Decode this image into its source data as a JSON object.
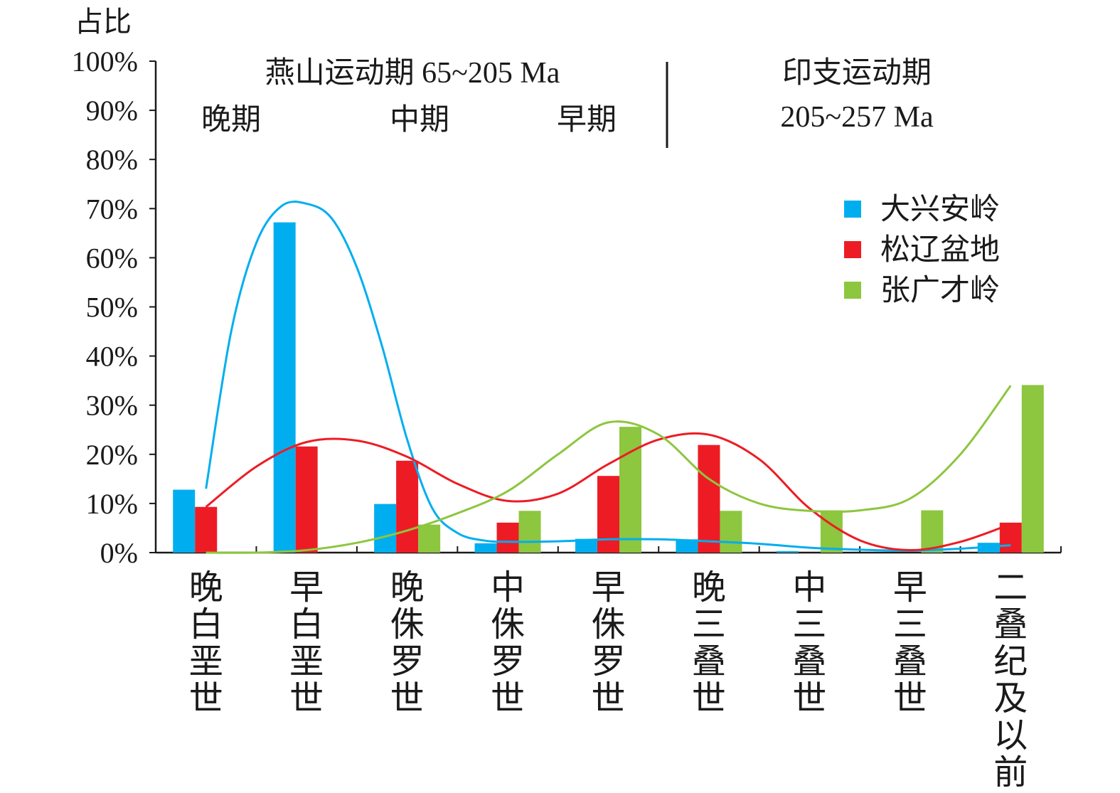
{
  "chart_data": {
    "type": "bar",
    "ylabel": "占比",
    "ylim": [
      0,
      100
    ],
    "y_ticks": [
      "0%",
      "10%",
      "20%",
      "30%",
      "40%",
      "50%",
      "60%",
      "70%",
      "80%",
      "90%",
      "100%"
    ],
    "categories": [
      "晚白垩世",
      "早白垩世",
      "晚侏罗世",
      "中侏罗世",
      "早侏罗世",
      "晚三叠世",
      "中三叠世",
      "早三叠世",
      "二叠纪及以前"
    ],
    "series": [
      {
        "name": "大兴安岭",
        "color": "#00AEEF",
        "values": [
          12.8,
          67.2,
          9.9,
          1.9,
          2.8,
          2.7,
          0.3,
          0,
          2.0
        ]
      },
      {
        "name": "松辽盆地",
        "color": "#ED1C24",
        "values": [
          9.3,
          21.6,
          18.7,
          6.1,
          15.6,
          21.9,
          0,
          0,
          6.1
        ]
      },
      {
        "name": "张广才岭",
        "color": "#8DC63F",
        "values": [
          0,
          0,
          5.7,
          8.5,
          25.6,
          8.5,
          8.6,
          8.6,
          34.1
        ]
      }
    ],
    "trend_lines": [
      {
        "series": "大兴安岭",
        "color": "#00AEEF",
        "points": [
          [
            0,
            13
          ],
          [
            0.25,
            45
          ],
          [
            0.5,
            63
          ],
          [
            0.75,
            70.5
          ],
          [
            1,
            71
          ],
          [
            1.25,
            68
          ],
          [
            1.5,
            58
          ],
          [
            1.75,
            42
          ],
          [
            2,
            23
          ],
          [
            2.25,
            9
          ],
          [
            2.5,
            4
          ],
          [
            2.75,
            2.5
          ],
          [
            3,
            2.2
          ],
          [
            3.5,
            2.3
          ],
          [
            4,
            2.7
          ],
          [
            4.5,
            2.7
          ],
          [
            5,
            2.3
          ],
          [
            5.5,
            1.8
          ],
          [
            6,
            1.0
          ],
          [
            6.5,
            0.6
          ],
          [
            7,
            0.4
          ],
          [
            7.5,
            0.8
          ],
          [
            8,
            1.5
          ]
        ]
      },
      {
        "series": "松辽盆地",
        "color": "#ED1C24",
        "points": [
          [
            0,
            9.3
          ],
          [
            0.5,
            17.5
          ],
          [
            1,
            22.5
          ],
          [
            1.5,
            22.8
          ],
          [
            2,
            19.5
          ],
          [
            2.5,
            14
          ],
          [
            3,
            10.5
          ],
          [
            3.5,
            12
          ],
          [
            4,
            18
          ],
          [
            4.5,
            23
          ],
          [
            5,
            24
          ],
          [
            5.5,
            19
          ],
          [
            6,
            9
          ],
          [
            6.5,
            2.5
          ],
          [
            7,
            0.5
          ],
          [
            7.5,
            2.2
          ],
          [
            8,
            5.8
          ]
        ]
      },
      {
        "series": "张广才岭",
        "color": "#8DC63F",
        "points": [
          [
            0,
            0
          ],
          [
            0.5,
            0
          ],
          [
            1,
            0.5
          ],
          [
            1.5,
            2
          ],
          [
            2,
            4.5
          ],
          [
            2.5,
            8
          ],
          [
            3,
            12.5
          ],
          [
            3.5,
            20
          ],
          [
            4,
            26.5
          ],
          [
            4.5,
            24
          ],
          [
            5,
            15
          ],
          [
            5.5,
            10
          ],
          [
            6,
            8.5
          ],
          [
            6.5,
            8.6
          ],
          [
            7,
            11
          ],
          [
            7.5,
            20
          ],
          [
            8,
            34
          ]
        ]
      }
    ],
    "period_labels": {
      "yanshan": "燕山运动期 65~205 Ma",
      "late": "晚期",
      "middle": "中期",
      "early": "早期",
      "indosinian_line1": "印支运动期",
      "indosinian_line2": "205~257 Ma"
    },
    "legend_position": "top-right",
    "grid": false
  }
}
